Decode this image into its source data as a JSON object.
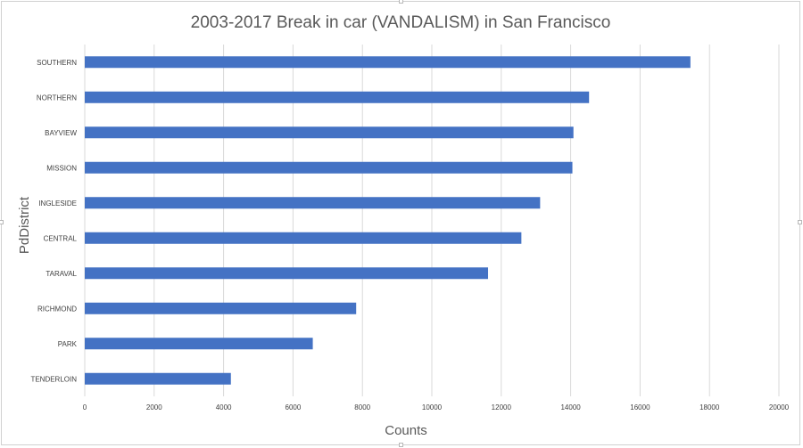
{
  "chart_data": {
    "type": "bar",
    "orientation": "horizontal",
    "title": "2003-2017 Break in car (VANDALISM) in San Francisco",
    "xlabel": "Counts",
    "ylabel": "PdDistrict",
    "categories": [
      "SOUTHERN",
      "NORTHERN",
      "BAYVIEW",
      "MISSION",
      "INGLESIDE",
      "CENTRAL",
      "TARAVAL",
      "RICHMOND",
      "PARK",
      "TENDERLOIN"
    ],
    "values": [
      17450,
      14530,
      14080,
      14050,
      13120,
      12580,
      11620,
      7820,
      6570,
      4210
    ],
    "xlim": [
      0,
      20000
    ],
    "xticks": [
      "0",
      "2000",
      "4000",
      "6000",
      "8000",
      "10000",
      "12000",
      "14000",
      "16000",
      "18000",
      "20000"
    ],
    "grid": "vertical",
    "bar_color": "#4472C4",
    "gridline_color": "#d9d9d9"
  }
}
